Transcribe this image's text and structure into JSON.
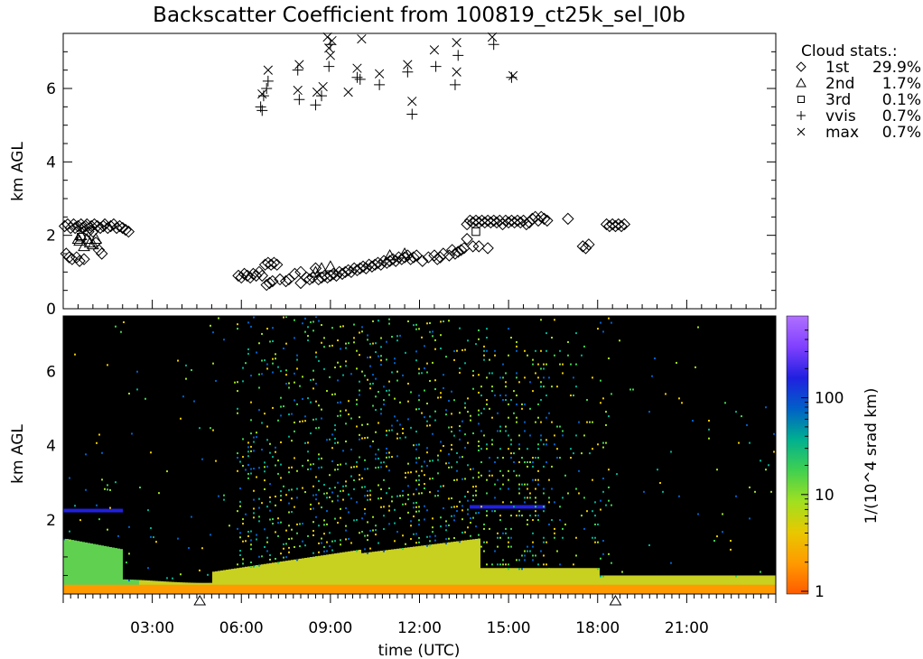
{
  "title": "Backscatter Coefficient from 100819_ct25k_sel_l0b",
  "xlabel": "time (UTC)",
  "chart_data": [
    {
      "type": "scatter",
      "panel": "cloud-base",
      "ylabel": "km AGL",
      "ylim": [
        0,
        7.5
      ],
      "xlim": [
        0,
        24
      ],
      "y_ticks": [
        "0",
        "2",
        "4",
        "6"
      ],
      "legend_title": "Cloud stats.:",
      "legend_placement": "right",
      "series": [
        {
          "name": "1st",
          "pct": "29.9%",
          "marker": "diamond",
          "points": [
            [
              0.05,
              2.25
            ],
            [
              0.1,
              1.5
            ],
            [
              0.15,
              2.3
            ],
            [
              0.2,
              1.4
            ],
            [
              0.25,
              2.2
            ],
            [
              0.3,
              1.35
            ],
            [
              0.35,
              2.3
            ],
            [
              0.4,
              2.2
            ],
            [
              0.45,
              1.4
            ],
            [
              0.5,
              2.25
            ],
            [
              0.55,
              1.3
            ],
            [
              0.6,
              2.3
            ],
            [
              0.65,
              2.2
            ],
            [
              0.7,
              1.35
            ],
            [
              0.75,
              2.25
            ],
            [
              0.8,
              2.3
            ],
            [
              0.85,
              2.1
            ],
            [
              0.9,
              2.2
            ],
            [
              0.95,
              2.25
            ],
            [
              1.0,
              2.1
            ],
            [
              1.05,
              2.3
            ],
            [
              1.1,
              1.8
            ],
            [
              1.15,
              2.25
            ],
            [
              1.2,
              1.6
            ],
            [
              1.25,
              2.2
            ],
            [
              1.3,
              1.5
            ],
            [
              1.35,
              2.25
            ],
            [
              1.4,
              2.3
            ],
            [
              1.5,
              2.2
            ],
            [
              1.6,
              2.25
            ],
            [
              1.7,
              2.3
            ],
            [
              1.8,
              2.2
            ],
            [
              1.9,
              2.25
            ],
            [
              2.0,
              2.2
            ],
            [
              2.1,
              2.15
            ],
            [
              2.2,
              2.1
            ],
            [
              5.9,
              0.9
            ],
            [
              6.0,
              0.85
            ],
            [
              6.1,
              0.95
            ],
            [
              6.2,
              0.9
            ],
            [
              6.3,
              0.85
            ],
            [
              6.4,
              0.95
            ],
            [
              6.5,
              0.9
            ],
            [
              6.6,
              1.0
            ],
            [
              6.7,
              0.9
            ],
            [
              6.8,
              1.2
            ],
            [
              6.85,
              0.65
            ],
            [
              6.9,
              1.25
            ],
            [
              6.95,
              0.7
            ],
            [
              7.0,
              1.2
            ],
            [
              7.05,
              0.75
            ],
            [
              7.1,
              1.25
            ],
            [
              7.2,
              1.2
            ],
            [
              7.3,
              0.8
            ],
            [
              7.5,
              0.75
            ],
            [
              7.6,
              0.8
            ],
            [
              7.8,
              0.95
            ],
            [
              8.0,
              1.0
            ],
            [
              8.0,
              0.7
            ],
            [
              8.2,
              0.85
            ],
            [
              8.3,
              0.8
            ],
            [
              8.4,
              0.85
            ],
            [
              8.5,
              1.1
            ],
            [
              8.6,
              0.8
            ],
            [
              8.7,
              0.85
            ],
            [
              8.8,
              0.9
            ],
            [
              8.9,
              0.85
            ],
            [
              9.0,
              0.9
            ],
            [
              9.1,
              0.95
            ],
            [
              9.2,
              0.9
            ],
            [
              9.3,
              1.0
            ],
            [
              9.4,
              0.95
            ],
            [
              9.5,
              1.0
            ],
            [
              9.6,
              1.05
            ],
            [
              9.7,
              1.0
            ],
            [
              9.8,
              1.1
            ],
            [
              9.9,
              1.05
            ],
            [
              10.0,
              1.1
            ],
            [
              10.1,
              1.15
            ],
            [
              10.2,
              1.1
            ],
            [
              10.3,
              1.2
            ],
            [
              10.4,
              1.15
            ],
            [
              10.5,
              1.2
            ],
            [
              10.6,
              1.25
            ],
            [
              10.7,
              1.2
            ],
            [
              10.8,
              1.3
            ],
            [
              10.9,
              1.25
            ],
            [
              11.0,
              1.3
            ],
            [
              11.1,
              1.35
            ],
            [
              11.2,
              1.3
            ],
            [
              11.3,
              1.4
            ],
            [
              11.4,
              1.35
            ],
            [
              11.5,
              1.4
            ],
            [
              11.6,
              1.45
            ],
            [
              11.7,
              1.35
            ],
            [
              11.8,
              1.4
            ],
            [
              11.9,
              1.45
            ],
            [
              12.1,
              1.3
            ],
            [
              12.3,
              1.4
            ],
            [
              12.5,
              1.45
            ],
            [
              12.6,
              1.35
            ],
            [
              12.7,
              1.4
            ],
            [
              12.8,
              1.5
            ],
            [
              13.0,
              1.45
            ],
            [
              13.1,
              1.6
            ],
            [
              13.2,
              1.5
            ],
            [
              13.3,
              1.55
            ],
            [
              13.4,
              1.6
            ],
            [
              13.5,
              1.65
            ],
            [
              13.6,
              1.9
            ],
            [
              13.6,
              2.3
            ],
            [
              13.7,
              2.4
            ],
            [
              13.8,
              2.35
            ],
            [
              13.8,
              1.7
            ],
            [
              13.9,
              2.4
            ],
            [
              14.0,
              2.35
            ],
            [
              14.0,
              1.7
            ],
            [
              14.1,
              2.4
            ],
            [
              14.2,
              2.35
            ],
            [
              14.3,
              2.4
            ],
            [
              14.3,
              1.65
            ],
            [
              14.4,
              2.35
            ],
            [
              14.5,
              2.4
            ],
            [
              14.6,
              2.35
            ],
            [
              14.7,
              2.4
            ],
            [
              14.8,
              2.3
            ],
            [
              14.9,
              2.4
            ],
            [
              15.0,
              2.35
            ],
            [
              15.1,
              2.4
            ],
            [
              15.2,
              2.35
            ],
            [
              15.3,
              2.4
            ],
            [
              15.4,
              2.35
            ],
            [
              15.5,
              2.4
            ],
            [
              15.6,
              2.3
            ],
            [
              15.7,
              2.35
            ],
            [
              15.8,
              2.45
            ],
            [
              15.9,
              2.5
            ],
            [
              16.0,
              2.4
            ],
            [
              16.1,
              2.5
            ],
            [
              16.2,
              2.45
            ],
            [
              16.3,
              2.4
            ],
            [
              17.0,
              2.45
            ],
            [
              17.5,
              1.7
            ],
            [
              17.6,
              1.65
            ],
            [
              17.7,
              1.75
            ],
            [
              18.3,
              2.3
            ],
            [
              18.4,
              2.25
            ],
            [
              18.5,
              2.3
            ],
            [
              18.6,
              2.25
            ],
            [
              18.7,
              2.3
            ],
            [
              18.8,
              2.25
            ],
            [
              18.9,
              2.3
            ]
          ]
        },
        {
          "name": "2nd",
          "pct": "1.7%",
          "marker": "triangle",
          "points": [
            [
              0.5,
              1.9
            ],
            [
              0.55,
              1.85
            ],
            [
              0.6,
              2.0
            ],
            [
              0.7,
              1.7
            ],
            [
              0.8,
              1.9
            ],
            [
              0.9,
              1.8
            ],
            [
              1.0,
              1.75
            ],
            [
              1.1,
              1.9
            ],
            [
              8.5,
              1.0
            ],
            [
              8.7,
              1.1
            ],
            [
              9.0,
              1.15
            ],
            [
              11.0,
              1.45
            ],
            [
              11.5,
              1.5
            ]
          ]
        },
        {
          "name": "3rd",
          "pct": "0.1%",
          "marker": "square",
          "points": [
            [
              0.6,
              1.95
            ],
            [
              13.9,
              2.1
            ]
          ]
        },
        {
          "name": "vvis",
          "pct": "0.7%",
          "marker": "plus",
          "points": [
            [
              6.65,
              5.5
            ],
            [
              6.7,
              5.4
            ],
            [
              6.75,
              5.8
            ],
            [
              6.85,
              6.0
            ],
            [
              6.9,
              6.2
            ],
            [
              7.9,
              6.5
            ],
            [
              7.95,
              5.7
            ],
            [
              8.5,
              5.55
            ],
            [
              8.7,
              5.8
            ],
            [
              8.95,
              6.6
            ],
            [
              9.0,
              7.2
            ],
            [
              9.9,
              6.3
            ],
            [
              10.0,
              6.25
            ],
            [
              10.65,
              6.1
            ],
            [
              11.6,
              6.45
            ],
            [
              11.75,
              5.3
            ],
            [
              12.55,
              6.6
            ],
            [
              13.2,
              6.1
            ],
            [
              13.3,
              6.9
            ],
            [
              14.5,
              7.2
            ],
            [
              15.1,
              6.3
            ]
          ]
        },
        {
          "name": "max",
          "pct": "0.7%",
          "marker": "x",
          "points": [
            [
              6.7,
              5.85
            ],
            [
              6.9,
              6.5
            ],
            [
              7.95,
              6.65
            ],
            [
              7.9,
              5.95
            ],
            [
              8.55,
              5.9
            ],
            [
              8.75,
              6.05
            ],
            [
              8.9,
              7.4
            ],
            [
              8.95,
              7.1
            ],
            [
              9.0,
              6.9
            ],
            [
              9.05,
              7.3
            ],
            [
              9.6,
              5.9
            ],
            [
              9.9,
              6.55
            ],
            [
              10.05,
              7.35
            ],
            [
              10.65,
              6.4
            ],
            [
              11.6,
              6.65
            ],
            [
              11.75,
              5.65
            ],
            [
              12.5,
              7.05
            ],
            [
              13.25,
              7.25
            ],
            [
              13.25,
              6.45
            ],
            [
              14.45,
              7.4
            ],
            [
              15.15,
              6.35
            ]
          ]
        }
      ]
    },
    {
      "type": "heatmap",
      "panel": "backscatter",
      "ylabel": "km AGL",
      "ylim": [
        0,
        7.5
      ],
      "xlim": [
        0,
        24
      ],
      "y_ticks": [
        "2",
        "4",
        "6"
      ],
      "x_ticks": [
        "03:00",
        "06:00",
        "09:00",
        "12:00",
        "15:00",
        "18:00",
        "21:00"
      ],
      "x_tick_values": [
        3,
        6,
        9,
        12,
        15,
        18,
        21
      ],
      "colorbar_label": "1/(10^4 srad km)",
      "colorbar_ticks": [
        "1",
        "10",
        "100"
      ],
      "colorbar_scale": "log",
      "colorbar_colors": [
        "#ff5a00",
        "#ff9a00",
        "#e8c800",
        "#a0e020",
        "#40d050",
        "#00b090",
        "#0060c8",
        "#2020e0",
        "#8040ff",
        "#b070ff"
      ],
      "background": "#000000",
      "event_markers": [
        4.6,
        18.6
      ]
    }
  ]
}
